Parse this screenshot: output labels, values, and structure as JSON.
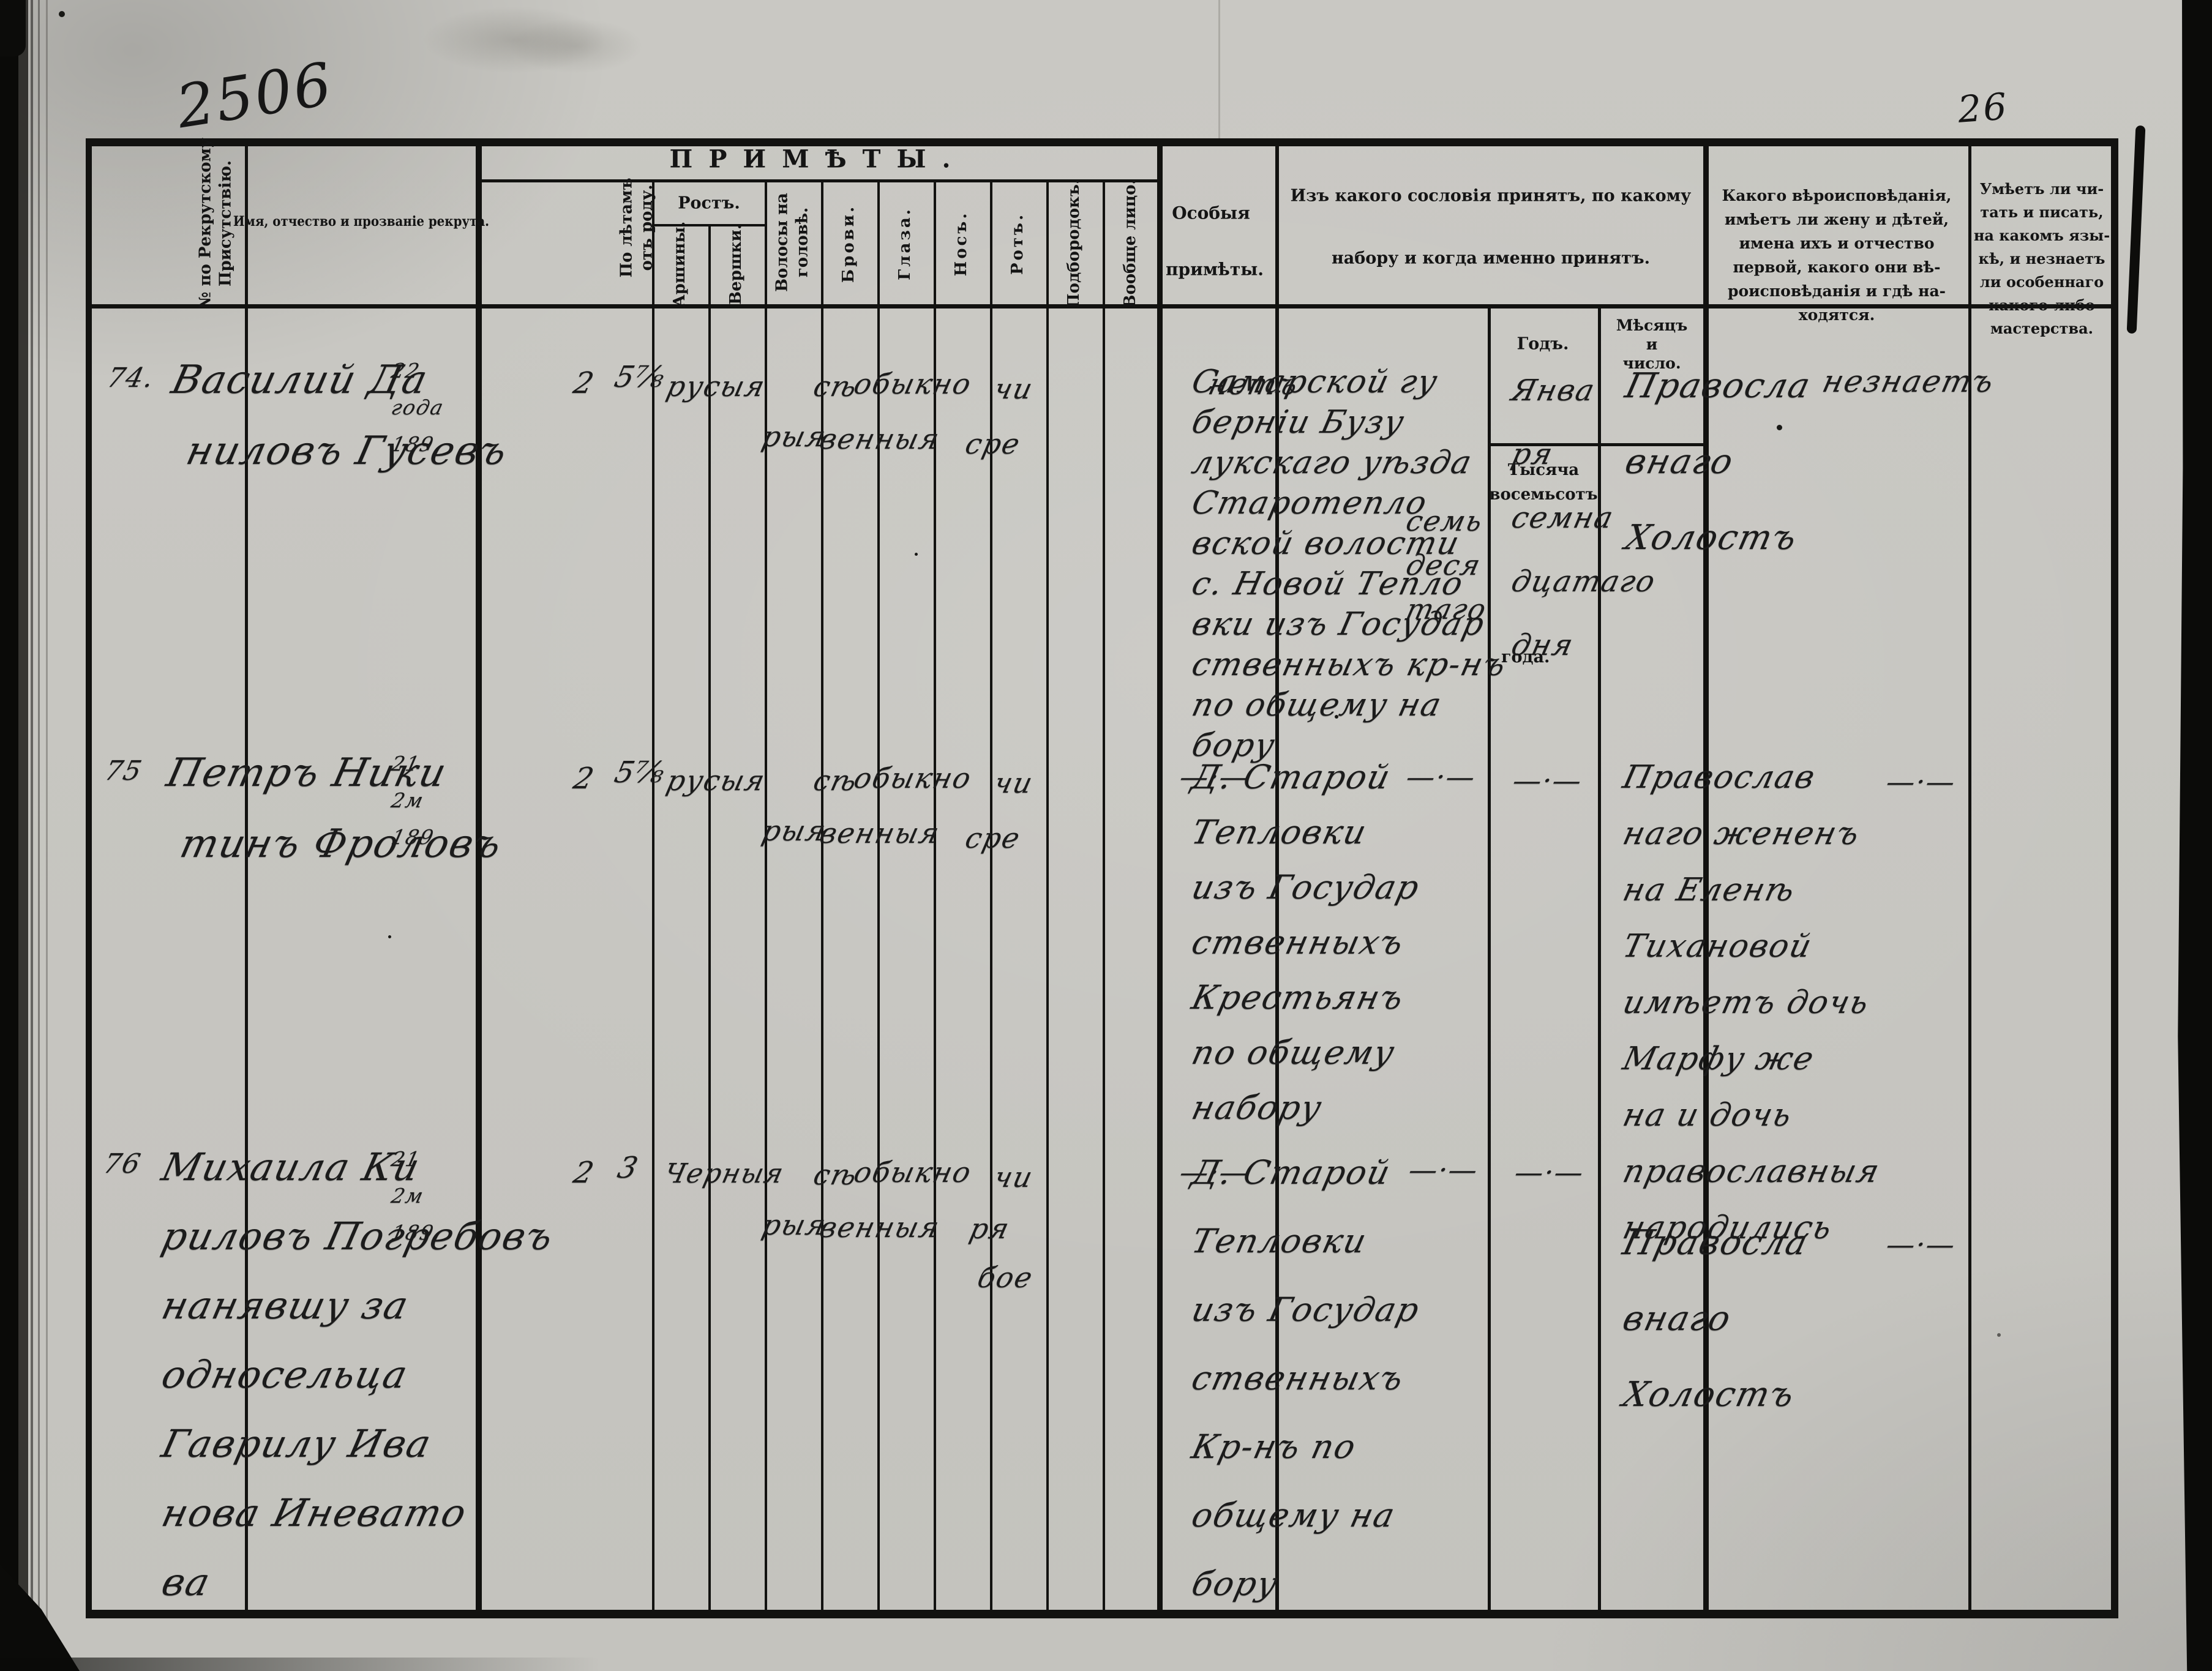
{
  "page": {
    "handwritten_folio_number": "2506",
    "page_number": "26",
    "table": {
      "header": {
        "recruit_no": [
          "№ по Рекрутскому",
          "Присутствію."
        ],
        "name": "Имя, отчество и прозваніе рекрута.",
        "primety": "ПРИМѢТЫ.",
        "age": [
          "По лѣтамъ",
          "отъ роду."
        ],
        "height": "Ростъ.",
        "arshins": "Аршины.",
        "vershoks": "Вершки.",
        "hair": [
          "Волосы на",
          "головѣ."
        ],
        "brows": "Брови.",
        "eyes": "Глаза.",
        "nose": "Носъ.",
        "mouth": "Ротъ.",
        "chin": "Подбородокъ.",
        "face": "Вообще лицо.",
        "special": [
          "Особыя",
          "примѣты."
        ],
        "estate": [
          "Изъ какого сословія принятъ, по какому",
          "набору и когда именно принятъ."
        ],
        "year": "Годъ.",
        "month_day": [
          "Мѣсяцъ",
          "и",
          "число."
        ],
        "faith": [
          "Какого вѣроисповѣданія,",
          "имѣетъ ли жену и дѣтей,",
          "имена ихъ и отчество",
          "первой, какого они вѣ-",
          "роисповѣданія и гдѣ на-",
          "ходятся."
        ],
        "literacy": [
          "Умѣетъ ли чи-",
          "тать и писать,",
          "на какомъ язы-",
          "кѣ, и незнаетъ",
          "ли особеннаго",
          "какого-либо",
          "мастерства."
        ]
      },
      "year_printed": {
        "top": [
          "Тысяча",
          "восемьсотъ"
        ],
        "bottom": "года."
      },
      "rows": [
        {
          "no": "74.",
          "name": [
            "Василий Да",
            "ниловъ Гусевъ"
          ],
          "age": [
            "22",
            "года",
            "189"
          ],
          "arshins": "2",
          "vershoks": "5⅞",
          "hair": "русыя",
          "eyes": [
            "сѣ",
            "рыя"
          ],
          "nose_mouth": [
            "обыкно",
            "венныя"
          ],
          "chin_face": [
            "чи",
            "сре"
          ],
          "special": [
            "нетъ"
          ],
          "estate": [
            "Самарской гу",
            "берніи Бузу",
            "лукскаго уѣзда",
            "Старотепло",
            "вской волости",
            "с. Новой Тепло",
            "вки изъ Государ",
            "ственныхъ кр-нъ",
            "по общему на",
            "бору"
          ],
          "year_hw": [
            "семь",
            "деся",
            "таго"
          ],
          "month": [
            "Янва",
            "ря",
            "семна",
            "дцатаго",
            "дня"
          ],
          "faith": [
            "Правосла",
            "внаго",
            "Холостъ"
          ],
          "literacy": [
            "незнаетъ"
          ]
        },
        {
          "no": "75",
          "name": [
            "Петръ Ники",
            "тинъ Фроловъ"
          ],
          "age": [
            "21",
            "2м",
            "189"
          ],
          "arshins": "2",
          "vershoks": "5⅞",
          "hair": "русыя",
          "eyes": [
            "сѣ",
            "рыя"
          ],
          "nose_mouth": [
            "обыкно",
            "венныя"
          ],
          "chin_face": [
            "чи",
            "сре"
          ],
          "special": [
            "—·—"
          ],
          "estate": [
            "Д. Старой",
            "Тепловки",
            "изъ Государ",
            "ственныхъ",
            "Крестьянъ",
            "по общему",
            "набору"
          ],
          "year_hw": [
            "—·—"
          ],
          "month": [
            "—·—"
          ],
          "faith": [
            "Православ",
            "наго жененъ",
            "на Еленѣ",
            "Тихановой",
            "имѣетъ дочь",
            "Марфу же",
            "на и дочь",
            "православныя",
            "народились"
          ],
          "literacy": [
            "—·—"
          ]
        },
        {
          "no": "76",
          "name": [
            "Михаила Ки",
            "риловъ Погребовъ",
            "нанявшу за",
            "односельца",
            "Гаврилу Ива",
            "нова Иневато",
            "ва"
          ],
          "age": [
            "21",
            "2м",
            "189"
          ],
          "arshins": "2",
          "vershoks": "3",
          "hair": "Черныя",
          "eyes": [
            "сѣ",
            "рыя"
          ],
          "nose_mouth": [
            "обыкно",
            "венныя"
          ],
          "chin_face": [
            "чи",
            "ря",
            "бое"
          ],
          "special": [
            "—·—"
          ],
          "estate": [
            "Д. Старой",
            "Тепловки",
            "изъ Государ",
            "ственныхъ",
            "Кр-нъ по",
            "общему на",
            "бору"
          ],
          "year_hw": [
            "—·—"
          ],
          "month": [
            "—·—"
          ],
          "faith": [
            "Правосла",
            "внаго",
            "Холостъ"
          ],
          "literacy": [
            "—·—"
          ]
        }
      ]
    }
  }
}
